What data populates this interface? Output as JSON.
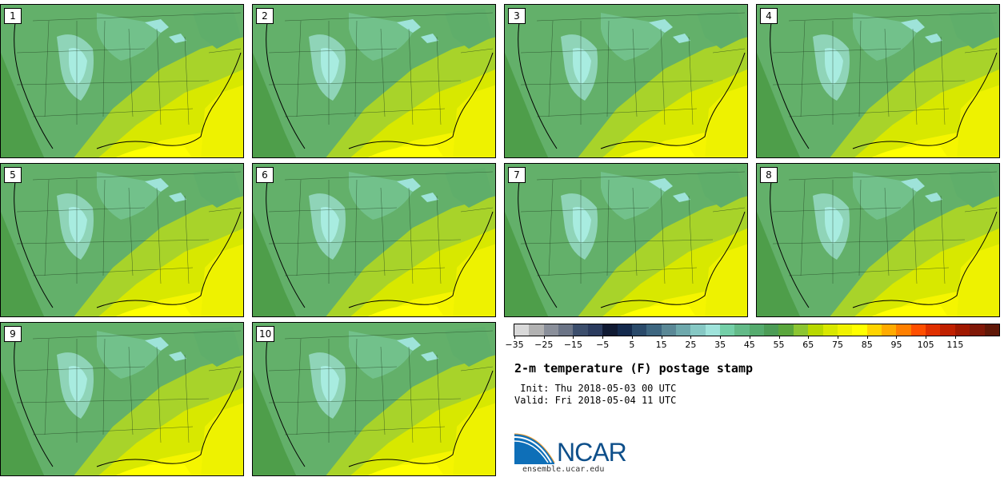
{
  "title": "2-m temperature (F) postage stamp",
  "init_text": " Init: Thu 2018-05-03 00 UTC",
  "valid_text": "Valid: Fri 2018-05-04 11 UTC",
  "logo": {
    "brand": "NCAR",
    "website": "ensemble.ucar.edu"
  },
  "panels": [
    {
      "label": "1"
    },
    {
      "label": "2"
    },
    {
      "label": "3"
    },
    {
      "label": "4"
    },
    {
      "label": "5"
    },
    {
      "label": "6"
    },
    {
      "label": "7"
    },
    {
      "label": "8"
    },
    {
      "label": "9"
    },
    {
      "label": "10"
    }
  ],
  "colorbar": {
    "colors": [
      "#d9d9d9",
      "#b2b2b2",
      "#8a8f9a",
      "#6b7486",
      "#3c4e6c",
      "#2b3b5e",
      "#101a33",
      "#142a4d",
      "#2a4a6a",
      "#3d6680",
      "#5a8896",
      "#6ea8ac",
      "#86c8c4",
      "#9fe3db",
      "#74cfa8",
      "#63ba88",
      "#55ab6e",
      "#4c9c56",
      "#5aa63c",
      "#8cc532",
      "#b8d800",
      "#d9e800",
      "#f0f200",
      "#ffff00",
      "#ffd400",
      "#ffab00",
      "#ff8000",
      "#ff4f00",
      "#e03000",
      "#c02000",
      "#a01800",
      "#801808",
      "#601808"
    ],
    "tick_labels": [
      "−35",
      "−25",
      "−15",
      "−5",
      "5",
      "15",
      "25",
      "35",
      "45",
      "55",
      "65",
      "75",
      "85",
      "95",
      "105",
      "115"
    ]
  }
}
